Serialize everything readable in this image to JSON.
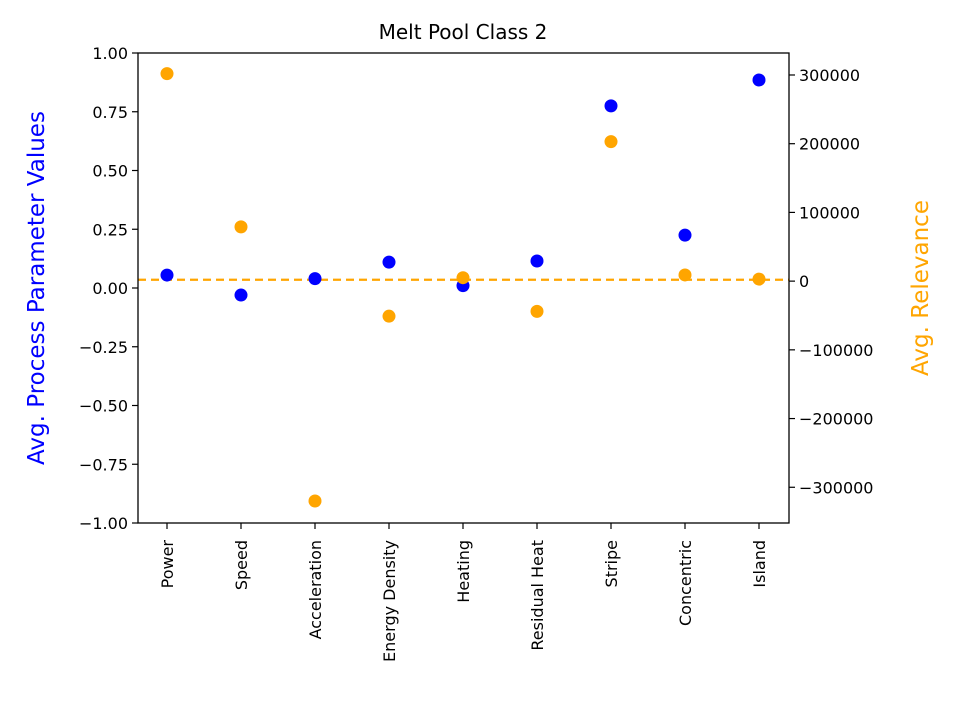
{
  "chart_data": {
    "type": "scatter",
    "title": "Melt Pool Class 2",
    "categories": [
      "Power",
      "Speed",
      "Acceleration",
      "Energy Density",
      "Heating",
      "Residual Heat",
      "Stripe",
      "Concentric",
      "Island"
    ],
    "y_left": {
      "label": "Avg. Process Parameter Values",
      "color": "#0000ff",
      "ylim": [
        -1.0,
        1.0
      ],
      "ticks": [
        -1.0,
        -0.75,
        -0.5,
        -0.25,
        0.0,
        0.25,
        0.5,
        0.75,
        1.0
      ],
      "tick_labels": [
        "−1.00",
        "−0.75",
        "−0.50",
        "−0.25",
        "0.00",
        "0.25",
        "0.50",
        "0.75",
        "1.00"
      ]
    },
    "y_right": {
      "label": "Avg. Relevance",
      "color": "#ffa500",
      "ylim": [
        -352000,
        332000
      ],
      "ticks": [
        -300000,
        -200000,
        -100000,
        0,
        100000,
        200000,
        300000
      ],
      "tick_labels": [
        "−300000",
        "−200000",
        "−100000",
        "0",
        "100000",
        "200000",
        "300000"
      ]
    },
    "series": [
      {
        "axis": "left",
        "color": "#0000ff",
        "values": [
          0.055,
          -0.03,
          0.04,
          0.11,
          0.01,
          0.115,
          0.775,
          0.225,
          0.885
        ]
      },
      {
        "axis": "right",
        "color": "#ffa500",
        "values": [
          302000,
          79000,
          -320000,
          -51000,
          5000,
          -44000,
          203000,
          9000,
          3000
        ]
      }
    ],
    "reference_line": {
      "axis": "right",
      "value": 2000,
      "style": "dashed",
      "color": "#ffa500"
    }
  }
}
